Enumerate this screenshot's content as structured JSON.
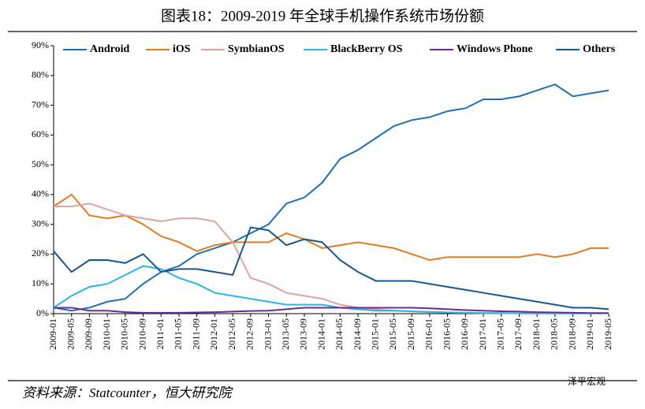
{
  "chart_data": {
    "type": "line",
    "title": "图表18：2009-2019 年全球手机操作系统市场份额",
    "source": "资料来源：Statcounter，恒大研究院",
    "watermark": "泽平宏观",
    "categories": [
      "2009-01",
      "2009-05",
      "2009-09",
      "2010-01",
      "2010-05",
      "2010-09",
      "2011-01",
      "2011-05",
      "2011-09",
      "2012-01",
      "2012-05",
      "2012-09",
      "2013-01",
      "2013-05",
      "2013-09",
      "2014-01",
      "2014-05",
      "2014-09",
      "2015-01",
      "2015-05",
      "2015-09",
      "2016-01",
      "2016-05",
      "2016-09",
      "2017-01",
      "2017-05",
      "2017-09",
      "2018-01",
      "2018-05",
      "2018-09",
      "2019-01",
      "2019-05"
    ],
    "series": [
      {
        "name": "Android",
        "color": "#1f6fb2",
        "values": [
          2,
          1,
          2,
          4,
          5,
          10,
          14,
          16,
          20,
          22,
          24,
          27,
          30,
          37,
          39,
          44,
          52,
          55,
          59,
          63,
          65,
          66,
          68,
          69,
          72,
          72,
          73,
          75,
          77,
          73,
          74,
          75
        ]
      },
      {
        "name": "iOS",
        "color": "#e07b20",
        "values": [
          36,
          40,
          33,
          32,
          33,
          30,
          26,
          24,
          21,
          23,
          24,
          24,
          24,
          27,
          25,
          22,
          23,
          24,
          23,
          22,
          20,
          18,
          19,
          19,
          19,
          19,
          19,
          20,
          19,
          20,
          22,
          22
        ]
      },
      {
        "name": "SymbianOS",
        "color": "#dba3a3",
        "values": [
          36,
          36,
          37,
          35,
          33,
          32,
          31,
          32,
          32,
          31,
          24,
          12,
          10,
          7,
          6,
          5,
          3,
          2,
          1.5,
          1,
          0.7,
          0.5,
          0.4,
          0.3,
          0.2,
          0.2,
          0.1,
          0.1,
          0.1,
          0.1,
          0.1,
          0.1
        ]
      },
      {
        "name": "BlackBerry OS",
        "color": "#2cb5e0",
        "values": [
          2,
          6,
          9,
          10,
          13,
          16,
          15,
          12,
          10,
          7,
          6,
          5,
          4,
          3,
          3,
          3,
          2,
          1.5,
          1,
          1,
          0.8,
          0.6,
          0.4,
          0.3,
          0.2,
          0.2,
          0.1,
          0.1,
          0.1,
          0.1,
          0.1,
          0.1
        ]
      },
      {
        "name": "Windows Phone",
        "color": "#6a2c91",
        "values": [
          2,
          2,
          1,
          1,
          0.5,
          0.3,
          0.3,
          0.3,
          0.4,
          0.5,
          0.7,
          0.9,
          1,
          1.5,
          2,
          2,
          2,
          2,
          2,
          2,
          2,
          1.8,
          1.5,
          1.2,
          1,
          0.8,
          0.7,
          0.5,
          0.4,
          0.3,
          0.2,
          0.2
        ]
      },
      {
        "name": "Others",
        "color": "#17578f",
        "values": [
          21,
          14,
          18,
          18,
          17,
          20,
          14,
          15,
          15,
          14,
          13,
          29,
          28,
          23,
          25,
          24,
          18,
          14,
          11,
          11,
          11,
          10,
          9,
          8,
          7,
          6,
          5,
          4,
          3,
          2,
          2,
          1.5
        ]
      }
    ],
    "ylim": [
      0,
      90
    ],
    "yticks": [
      {
        "value": 0,
        "label": "0%"
      },
      {
        "value": 10,
        "label": "10%"
      },
      {
        "value": 20,
        "label": "20%"
      },
      {
        "value": 30,
        "label": "30%"
      },
      {
        "value": 40,
        "label": "40%"
      },
      {
        "value": 50,
        "label": "50%"
      },
      {
        "value": 60,
        "label": "60%"
      },
      {
        "value": 70,
        "label": "70%"
      },
      {
        "value": 80,
        "label": "80%"
      },
      {
        "value": 90,
        "label": "90%"
      }
    ]
  }
}
